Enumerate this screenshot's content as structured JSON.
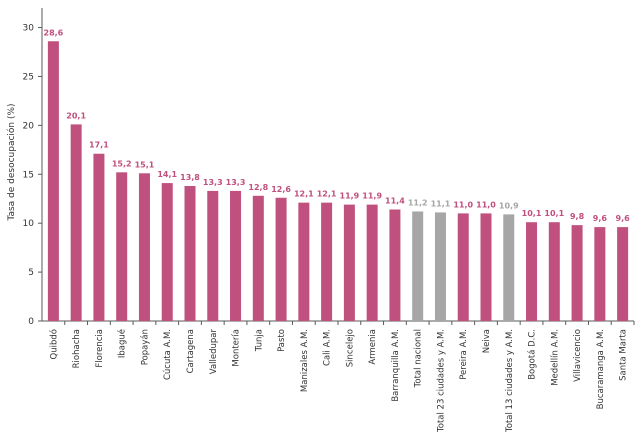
{
  "chart_data": {
    "type": "bar",
    "ylabel": "Tasa de desocupación (%)",
    "xlabel": "",
    "ylim": [
      0,
      32
    ],
    "yticks": [
      0,
      5,
      10,
      15,
      20,
      25,
      30
    ],
    "grid": false,
    "categories": [
      "Quibdó",
      "Riohacha",
      "Florencia",
      "Ibagué",
      "Popayán",
      "Cúcuta A.M.",
      "Cartagena",
      "Valledupar",
      "Montería",
      "Tunja",
      "Pasto",
      "Manizales A.M.",
      "Cali A.M.",
      "Sincelejo",
      "Armenia",
      "Barranquilla A.M.",
      "Total nacional",
      "Total 23 ciudades y A.M.",
      "Pereira A.M.",
      "Neiva",
      "Total 13 ciudades y A.M.",
      "Bogotá D.C.",
      "Medellín A.M.",
      "Villavicencio",
      "Bucaramanga A.M.",
      "Santa Marta"
    ],
    "values": [
      28.6,
      20.1,
      17.1,
      15.2,
      15.1,
      14.1,
      13.8,
      13.3,
      13.3,
      12.8,
      12.6,
      12.1,
      12.1,
      11.9,
      11.9,
      11.4,
      11.2,
      11.1,
      11.0,
      11.0,
      10.9,
      10.1,
      10.1,
      9.8,
      9.6,
      9.6
    ],
    "value_labels": [
      "28,6",
      "20,1",
      "17,1",
      "15,2",
      "15,1",
      "14,1",
      "13,8",
      "13,3",
      "13,3",
      "12,8",
      "12,6",
      "12,1",
      "12,1",
      "11,9",
      "11,9",
      "11,4",
      "11,2",
      "11,1",
      "11,0",
      "11,0",
      "10,9",
      "10,1",
      "10,1",
      "9,8",
      "9,6",
      "9,6"
    ],
    "highlight_categories": [
      "Total nacional",
      "Total 23 ciudades y A.M.",
      "Total 13 ciudades y A.M."
    ],
    "colors": {
      "bar": "#c0507e",
      "highlight_bar": "#a6a6a6",
      "label": "#c0507e",
      "highlight_label": "#a6a6a6",
      "axis": "#595959"
    }
  }
}
